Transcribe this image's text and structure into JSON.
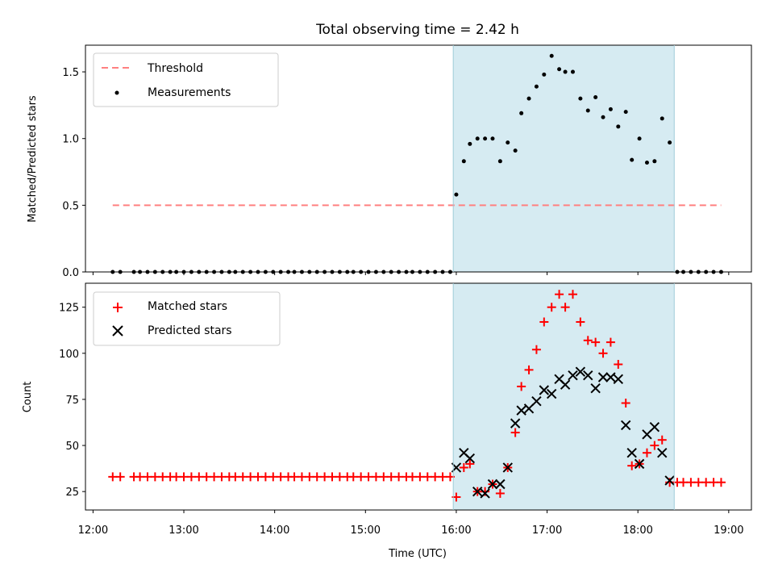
{
  "colors": {
    "highlight": "#add8e6",
    "threshold": "#ff8080",
    "measurement": "#000000",
    "matched": "#ff0000",
    "predicted": "#000000"
  },
  "chart_data": [
    {
      "type": "scatter",
      "title": "Total observing time = 2.42 h",
      "xlabel": "",
      "ylabel": "Matched/Predicted stars",
      "ylim": [
        0,
        1.7
      ],
      "yticks": [
        0.0,
        0.5,
        1.0,
        1.5
      ],
      "ytick_labels": [
        "0.0",
        "0.5",
        "1.0",
        "1.5"
      ],
      "xlim": [
        "11:55",
        "19:15"
      ],
      "xticks": [
        "12:00",
        "13:00",
        "14:00",
        "15:00",
        "16:00",
        "17:00",
        "18:00",
        "19:00"
      ],
      "highlight_span": [
        "15:58",
        "18:24"
      ],
      "legend_position": "upper left",
      "legend": {
        "threshold": "Threshold",
        "measurements": "Measurements"
      },
      "threshold": {
        "value": 0.5,
        "x": [
          "12:13",
          "18:55"
        ]
      },
      "series": [
        {
          "name": "Measurements",
          "marker": "dot",
          "x": [
            "12:13",
            "12:18",
            "12:27",
            "12:31",
            "12:36",
            "12:41",
            "12:46",
            "12:51",
            "12:55",
            "13:00",
            "13:05",
            "13:10",
            "13:15",
            "13:20",
            "13:25",
            "13:30",
            "13:34",
            "13:39",
            "13:44",
            "13:49",
            "13:54",
            "13:59",
            "14:04",
            "14:09",
            "14:13",
            "14:18",
            "14:23",
            "14:28",
            "14:33",
            "14:38",
            "14:43",
            "14:48",
            "14:52",
            "14:57",
            "15:02",
            "15:07",
            "15:12",
            "15:17",
            "15:22",
            "15:27",
            "15:31",
            "15:36",
            "15:41",
            "15:46",
            "15:51",
            "15:56",
            "16:00",
            "16:05",
            "16:09",
            "16:14",
            "16:19",
            "16:24",
            "16:29",
            "16:34",
            "16:39",
            "16:43",
            "16:48",
            "16:53",
            "16:58",
            "17:03",
            "17:08",
            "17:12",
            "17:17",
            "17:22",
            "17:27",
            "17:32",
            "17:37",
            "17:42",
            "17:47",
            "17:52",
            "17:56",
            "18:01",
            "18:06",
            "18:11",
            "18:16",
            "18:21",
            "18:26",
            "18:30",
            "18:35",
            "18:40",
            "18:45",
            "18:50",
            "18:55"
          ],
          "y": [
            0,
            0,
            0,
            0,
            0,
            0,
            0,
            0,
            0,
            0,
            0,
            0,
            0,
            0,
            0,
            0,
            0,
            0,
            0,
            0,
            0,
            0,
            0,
            0,
            0,
            0,
            0,
            0,
            0,
            0,
            0,
            0,
            0,
            0,
            0,
            0,
            0,
            0,
            0,
            0,
            0,
            0,
            0,
            0,
            0,
            0,
            0.58,
            0.83,
            0.96,
            1.0,
            1.0,
            1.0,
            0.83,
            0.97,
            0.91,
            1.19,
            1.3,
            1.39,
            1.48,
            1.62,
            1.52,
            1.5,
            1.5,
            1.3,
            1.21,
            1.31,
            1.16,
            1.22,
            1.09,
            1.2,
            0.84,
            1.0,
            0.82,
            0.83,
            1.15,
            0.97,
            0,
            0,
            0,
            0,
            0,
            0,
            0
          ]
        }
      ]
    },
    {
      "type": "scatter",
      "title": "",
      "xlabel": "Time (UTC)",
      "ylabel": "Count",
      "ylim": [
        15,
        138
      ],
      "yticks": [
        25,
        50,
        75,
        100,
        125
      ],
      "ytick_labels": [
        "25",
        "50",
        "75",
        "100",
        "125"
      ],
      "xlim": [
        "11:55",
        "19:15"
      ],
      "xticks": [
        "12:00",
        "13:00",
        "14:00",
        "15:00",
        "16:00",
        "17:00",
        "18:00",
        "19:00"
      ],
      "xtick_labels": [
        "12:00",
        "13:00",
        "14:00",
        "15:00",
        "16:00",
        "17:00",
        "18:00",
        "19:00"
      ],
      "highlight_span": [
        "15:58",
        "18:24"
      ],
      "legend_position": "upper left",
      "series": [
        {
          "name": "Matched stars",
          "marker": "plus",
          "x": [
            "12:13",
            "12:18",
            "12:27",
            "12:31",
            "12:36",
            "12:41",
            "12:46",
            "12:51",
            "12:55",
            "13:00",
            "13:05",
            "13:10",
            "13:15",
            "13:20",
            "13:25",
            "13:30",
            "13:34",
            "13:39",
            "13:44",
            "13:49",
            "13:54",
            "13:59",
            "14:04",
            "14:09",
            "14:13",
            "14:18",
            "14:23",
            "14:28",
            "14:33",
            "14:38",
            "14:43",
            "14:48",
            "14:52",
            "14:57",
            "15:02",
            "15:07",
            "15:12",
            "15:17",
            "15:22",
            "15:27",
            "15:31",
            "15:36",
            "15:41",
            "15:46",
            "15:51",
            "15:56",
            "16:00",
            "16:05",
            "16:09",
            "16:14",
            "16:19",
            "16:24",
            "16:29",
            "16:34",
            "16:39",
            "16:43",
            "16:48",
            "16:53",
            "16:58",
            "17:03",
            "17:08",
            "17:12",
            "17:17",
            "17:22",
            "17:27",
            "17:32",
            "17:37",
            "17:42",
            "17:47",
            "17:52",
            "17:56",
            "18:01",
            "18:06",
            "18:11",
            "18:16",
            "18:21",
            "18:26",
            "18:30",
            "18:35",
            "18:40",
            "18:45",
            "18:50",
            "18:55"
          ],
          "y": [
            33,
            33,
            33,
            33,
            33,
            33,
            33,
            33,
            33,
            33,
            33,
            33,
            33,
            33,
            33,
            33,
            33,
            33,
            33,
            33,
            33,
            33,
            33,
            33,
            33,
            33,
            33,
            33,
            33,
            33,
            33,
            33,
            33,
            33,
            33,
            33,
            33,
            33,
            33,
            33,
            33,
            33,
            33,
            33,
            33,
            33,
            22,
            38,
            40,
            25,
            25,
            29,
            24,
            38,
            57,
            82,
            91,
            102,
            117,
            125,
            132,
            125,
            132,
            117,
            107,
            106,
            100,
            106,
            94,
            73,
            39,
            40,
            46,
            50,
            53,
            30,
            30,
            30,
            30,
            30,
            30,
            30,
            30
          ]
        },
        {
          "name": "Predicted stars",
          "marker": "x",
          "x": [
            "16:00",
            "16:05",
            "16:09",
            "16:14",
            "16:19",
            "16:24",
            "16:29",
            "16:34",
            "16:39",
            "16:43",
            "16:48",
            "16:53",
            "16:58",
            "17:03",
            "17:08",
            "17:12",
            "17:17",
            "17:22",
            "17:27",
            "17:32",
            "17:37",
            "17:42",
            "17:47",
            "17:52",
            "17:56",
            "18:01",
            "18:06",
            "18:11",
            "18:16",
            "18:21"
          ],
          "y": [
            38,
            46,
            43,
            25,
            24,
            29,
            29,
            38,
            62,
            69,
            70,
            74,
            80,
            78,
            86,
            83,
            88,
            90,
            88,
            81,
            87,
            87,
            86,
            61,
            46,
            40,
            56,
            60,
            46,
            31
          ]
        }
      ]
    }
  ]
}
